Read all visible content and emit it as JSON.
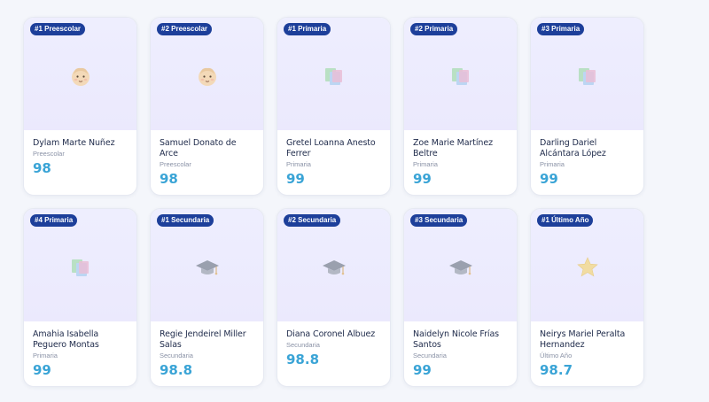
{
  "cards": [
    {
      "badge": "#1 Preescolar",
      "icon": "baby-icon",
      "name": "Dylam Marte Nuñez",
      "category": "Preescolar",
      "score": "98"
    },
    {
      "badge": "#2 Preescolar",
      "icon": "baby-icon",
      "name": "Samuel Donato de Arce",
      "category": "Preescolar",
      "score": "98"
    },
    {
      "badge": "#1 Primaria",
      "icon": "books-icon",
      "name": "Gretel Loanna Anesto Ferrer",
      "category": "Primaria",
      "score": "99"
    },
    {
      "badge": "#2 Primaria",
      "icon": "books-icon",
      "name": "Zoe Marie Martínez Beltre",
      "category": "Primaria",
      "score": "99"
    },
    {
      "badge": "#3 Primaria",
      "icon": "books-icon",
      "name": "Darling Dariel Alcántara López",
      "category": "Primaria",
      "score": "99"
    },
    {
      "badge": "#4 Primaria",
      "icon": "books-icon",
      "name": "Amahia Isabella Peguero Montas",
      "category": "Primaria",
      "score": "99"
    },
    {
      "badge": "#1 Secundaria",
      "icon": "graduation-cap-icon",
      "name": "Regie Jendeirel Miller Salas",
      "category": "Secundaria",
      "score": "98.8"
    },
    {
      "badge": "#2 Secundaria",
      "icon": "graduation-cap-icon",
      "name": "Diana Coronel Albuez",
      "category": "Secundaria",
      "score": "98.8"
    },
    {
      "badge": "#3 Secundaria",
      "icon": "graduation-cap-icon",
      "name": "Naidelyn Nicole Frías Santos",
      "category": "Secundaria",
      "score": "99"
    },
    {
      "badge": "#1 Último Año",
      "icon": "star-icon",
      "name": "Neirys Mariel Peralta Hernandez",
      "category": "Último Año",
      "score": "98.7"
    }
  ],
  "colors": {
    "badge": "#1d3f9a",
    "score": "#3aa4d6",
    "media_background": "#eeeefe"
  }
}
